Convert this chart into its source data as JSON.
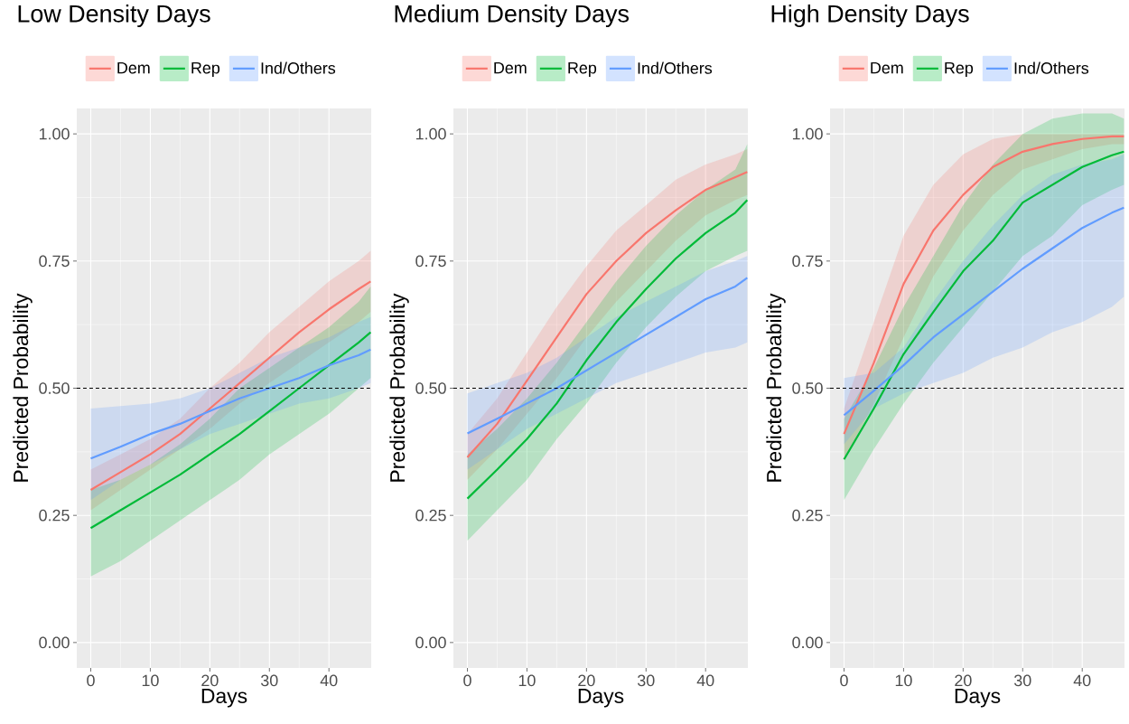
{
  "chart_data": [
    {
      "type": "line",
      "title": "Low Density Days",
      "xlabel": "Days",
      "ylabel": "Predicted Probability",
      "legend": "top",
      "grid": true,
      "x": [
        0,
        5,
        10,
        15,
        20,
        25,
        30,
        35,
        40,
        45,
        47
      ],
      "xlim": [
        -2.35,
        47.1
      ],
      "ylim": [
        -0.05,
        1.05
      ],
      "xticks": [
        0,
        10,
        20,
        30,
        40
      ],
      "yticks": [
        {
          "value": 0,
          "label": "0.00"
        },
        {
          "value": 0.25,
          "label": "0.25"
        },
        {
          "value": 0.5,
          "label": "0.50"
        },
        {
          "value": 0.75,
          "label": "0.75"
        },
        {
          "value": 1,
          "label": "1.00"
        }
      ],
      "ref_lines": [
        {
          "axis": "y",
          "value": 0.5,
          "line_style": "dashed",
          "color": "#000000"
        }
      ],
      "series": [
        {
          "name": "Dem",
          "color": "#f8766d",
          "values": [
            0.3,
            0.335,
            0.37,
            0.41,
            0.46,
            0.51,
            0.56,
            0.61,
            0.655,
            0.695,
            0.71
          ],
          "lower": [
            0.26,
            0.3,
            0.34,
            0.38,
            0.42,
            0.47,
            0.51,
            0.55,
            0.59,
            0.63,
            0.65
          ],
          "upper": [
            0.34,
            0.37,
            0.4,
            0.44,
            0.5,
            0.55,
            0.61,
            0.66,
            0.71,
            0.75,
            0.77
          ]
        },
        {
          "name": "Rep",
          "color": "#00ba38",
          "values": [
            0.225,
            0.26,
            0.295,
            0.33,
            0.37,
            0.41,
            0.455,
            0.5,
            0.545,
            0.59,
            0.61
          ],
          "lower": [
            0.13,
            0.16,
            0.2,
            0.24,
            0.28,
            0.32,
            0.37,
            0.41,
            0.45,
            0.5,
            0.52
          ],
          "upper": [
            0.3,
            0.32,
            0.35,
            0.39,
            0.44,
            0.5,
            0.54,
            0.58,
            0.62,
            0.67,
            0.7
          ]
        },
        {
          "name": "Ind/Others",
          "color": "#619cff",
          "values": [
            0.362,
            0.385,
            0.41,
            0.43,
            0.455,
            0.48,
            0.5,
            0.52,
            0.545,
            0.565,
            0.576
          ],
          "lower": [
            0.28,
            0.32,
            0.35,
            0.38,
            0.41,
            0.43,
            0.45,
            0.47,
            0.48,
            0.5,
            0.51
          ],
          "upper": [
            0.46,
            0.465,
            0.47,
            0.48,
            0.5,
            0.53,
            0.56,
            0.58,
            0.6,
            0.63,
            0.64
          ]
        }
      ]
    },
    {
      "type": "line",
      "title": "Medium Density Days",
      "xlabel": "Days",
      "ylabel": "Predicted Probability",
      "legend": "top",
      "grid": true,
      "x": [
        0,
        5,
        10,
        15,
        20,
        25,
        30,
        35,
        40,
        45,
        47
      ],
      "xlim": [
        -2.35,
        47.1
      ],
      "ylim": [
        -0.05,
        1.05
      ],
      "xticks": [
        0,
        10,
        20,
        30,
        40
      ],
      "yticks": [
        {
          "value": 0,
          "label": "0.00"
        },
        {
          "value": 0.25,
          "label": "0.25"
        },
        {
          "value": 0.5,
          "label": "0.50"
        },
        {
          "value": 0.75,
          "label": "0.75"
        },
        {
          "value": 1,
          "label": "1.00"
        }
      ],
      "ref_lines": [
        {
          "axis": "y",
          "value": 0.5,
          "line_style": "dashed",
          "color": "#000000"
        }
      ],
      "series": [
        {
          "name": "Dem",
          "color": "#f8766d",
          "values": [
            0.364,
            0.43,
            0.515,
            0.6,
            0.685,
            0.75,
            0.805,
            0.85,
            0.89,
            0.915,
            0.925
          ],
          "lower": [
            0.32,
            0.38,
            0.45,
            0.52,
            0.6,
            0.67,
            0.73,
            0.79,
            0.84,
            0.87,
            0.88
          ],
          "upper": [
            0.41,
            0.48,
            0.57,
            0.66,
            0.74,
            0.81,
            0.86,
            0.91,
            0.94,
            0.96,
            0.97
          ]
        },
        {
          "name": "Rep",
          "color": "#00ba38",
          "values": [
            0.283,
            0.34,
            0.4,
            0.47,
            0.555,
            0.63,
            0.695,
            0.755,
            0.805,
            0.845,
            0.87
          ],
          "lower": [
            0.2,
            0.26,
            0.32,
            0.4,
            0.47,
            0.55,
            0.62,
            0.68,
            0.73,
            0.76,
            0.77
          ],
          "upper": [
            0.37,
            0.42,
            0.48,
            0.55,
            0.63,
            0.71,
            0.78,
            0.84,
            0.89,
            0.93,
            0.98
          ]
        },
        {
          "name": "Ind/Others",
          "color": "#619cff",
          "values": [
            0.411,
            0.44,
            0.47,
            0.5,
            0.535,
            0.57,
            0.605,
            0.64,
            0.675,
            0.7,
            0.717
          ],
          "lower": [
            0.34,
            0.38,
            0.42,
            0.45,
            0.48,
            0.51,
            0.53,
            0.55,
            0.57,
            0.58,
            0.59
          ],
          "upper": [
            0.49,
            0.51,
            0.53,
            0.56,
            0.6,
            0.64,
            0.67,
            0.7,
            0.73,
            0.75,
            0.76
          ]
        }
      ]
    },
    {
      "type": "line",
      "title": "High Density Days",
      "xlabel": "Days",
      "ylabel": "Predicted Probability",
      "legend": "top",
      "grid": true,
      "x": [
        0,
        5,
        10,
        15,
        20,
        25,
        30,
        35,
        40,
        45,
        47
      ],
      "xlim": [
        -2.35,
        47.1
      ],
      "ylim": [
        -0.05,
        1.05
      ],
      "xticks": [
        0,
        10,
        20,
        30,
        40
      ],
      "yticks": [
        {
          "value": 0,
          "label": "0.00"
        },
        {
          "value": 0.25,
          "label": "0.25"
        },
        {
          "value": 0.5,
          "label": "0.50"
        },
        {
          "value": 0.75,
          "label": "0.75"
        },
        {
          "value": 1,
          "label": "1.00"
        }
      ],
      "ref_lines": [
        {
          "axis": "y",
          "value": 0.5,
          "line_style": "dashed",
          "color": "#000000"
        }
      ],
      "series": [
        {
          "name": "Dem",
          "color": "#f8766d",
          "values": [
            0.41,
            0.55,
            0.705,
            0.81,
            0.88,
            0.935,
            0.965,
            0.98,
            0.99,
            0.995,
            0.995
          ],
          "lower": [
            0.36,
            0.47,
            0.6,
            0.72,
            0.81,
            0.88,
            0.93,
            0.95,
            0.97,
            0.98,
            0.98
          ],
          "upper": [
            0.46,
            0.63,
            0.8,
            0.9,
            0.96,
            0.99,
            1.0,
            1.0,
            1.0,
            1.0,
            1.0
          ]
        },
        {
          "name": "Rep",
          "color": "#00ba38",
          "values": [
            0.36,
            0.46,
            0.567,
            0.65,
            0.73,
            0.79,
            0.865,
            0.9,
            0.935,
            0.958,
            0.965
          ],
          "lower": [
            0.28,
            0.38,
            0.47,
            0.55,
            0.62,
            0.69,
            0.76,
            0.8,
            0.86,
            0.89,
            0.9
          ],
          "upper": [
            0.44,
            0.54,
            0.66,
            0.76,
            0.86,
            0.94,
            1.0,
            1.03,
            1.04,
            1.04,
            1.03
          ]
        },
        {
          "name": "Ind/Others",
          "color": "#619cff",
          "values": [
            0.447,
            0.495,
            0.545,
            0.6,
            0.645,
            0.69,
            0.735,
            0.775,
            0.815,
            0.845,
            0.855
          ],
          "lower": [
            0.39,
            0.46,
            0.49,
            0.51,
            0.53,
            0.56,
            0.58,
            0.61,
            0.63,
            0.66,
            0.68
          ],
          "upper": [
            0.52,
            0.53,
            0.58,
            0.67,
            0.75,
            0.82,
            0.88,
            0.92,
            0.94,
            0.95,
            0.96
          ]
        }
      ]
    }
  ]
}
